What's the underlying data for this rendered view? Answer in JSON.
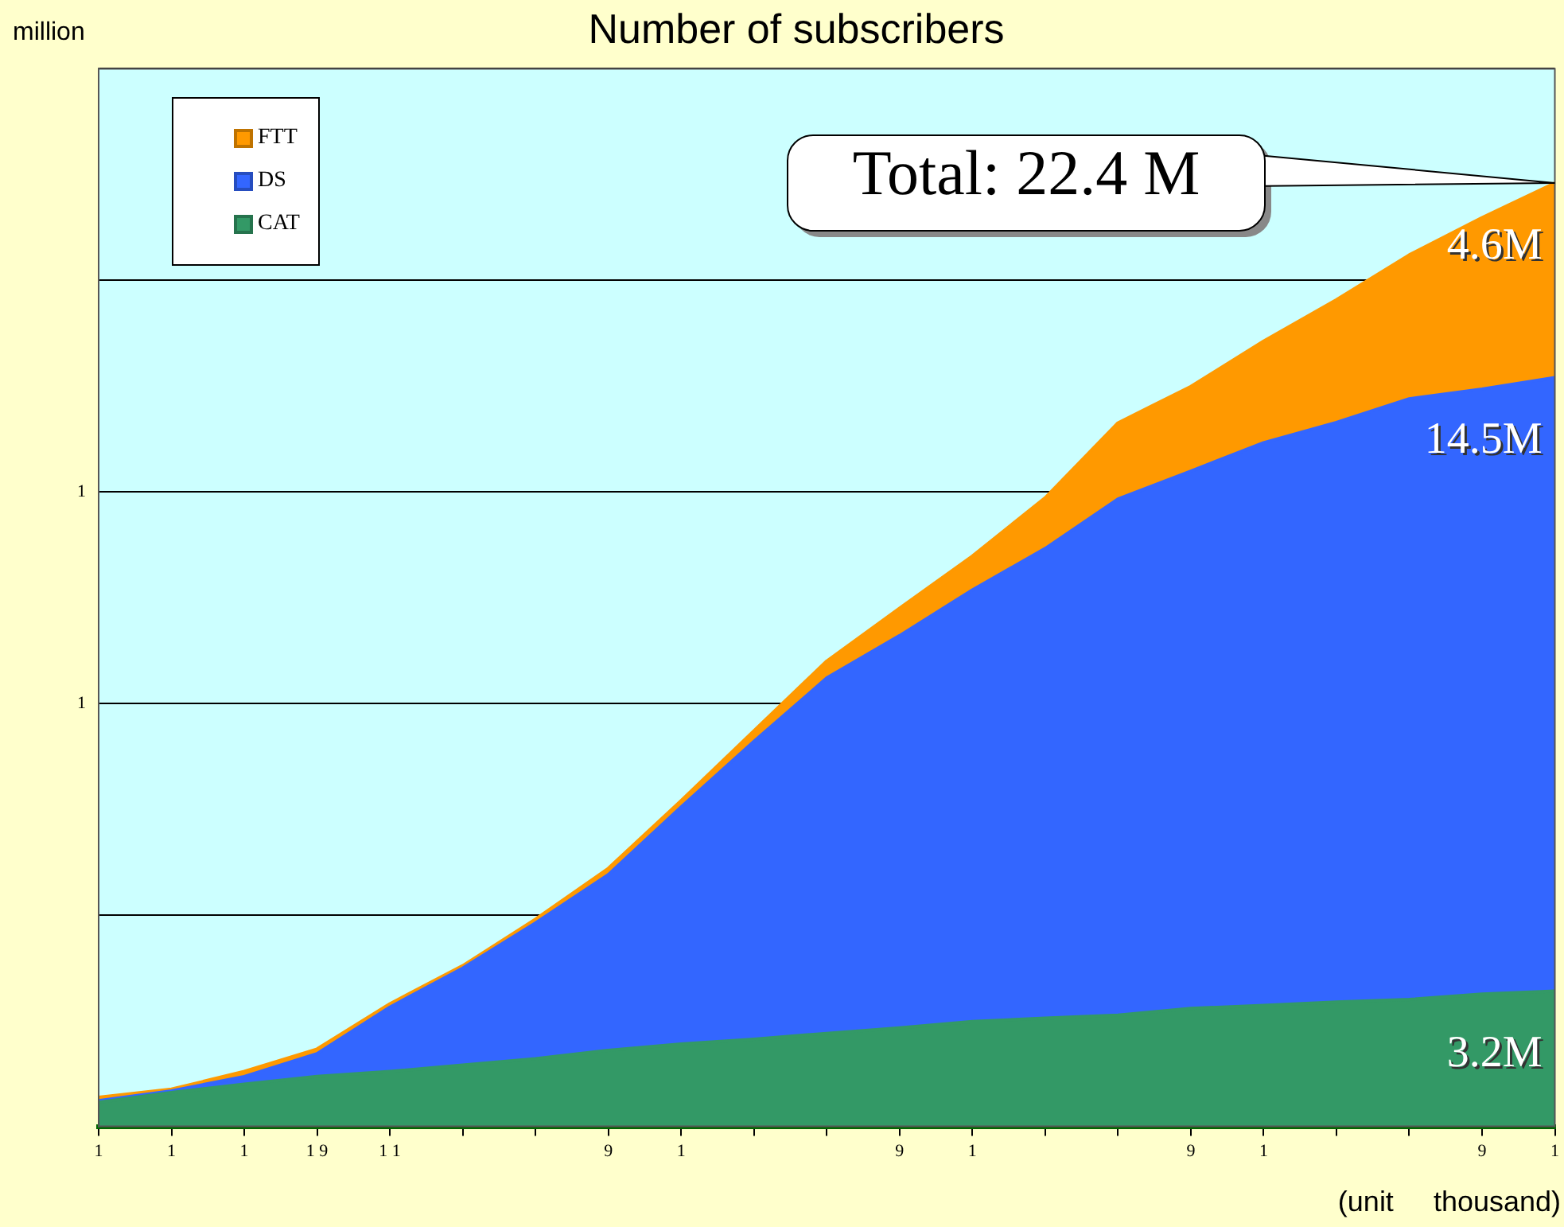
{
  "chart_data": {
    "type": "area",
    "title": "Number of subscribers",
    "ylabel": "million",
    "stacked": true,
    "categories": [
      "1",
      "1",
      "1",
      "1 9",
      "1 1",
      null,
      null,
      "9",
      "1",
      null,
      null,
      "9",
      "1",
      null,
      null,
      "9",
      "1",
      null,
      null,
      "9",
      "1"
    ],
    "series": [
      {
        "name": "CAT",
        "color": "#339966",
        "values": [
          0.57,
          0.8,
          1.0,
          1.18,
          1.3,
          1.45,
          1.6,
          1.8,
          1.95,
          2.06,
          2.2,
          2.33,
          2.48,
          2.56,
          2.63,
          2.79,
          2.86,
          2.94,
          3.0,
          3.13,
          3.2
        ],
        "value_labels": [
          null,
          null,
          null,
          null,
          null,
          null,
          null,
          null,
          null,
          null,
          null,
          null,
          null,
          null,
          null,
          null,
          null,
          null,
          null,
          null,
          "3.2M"
        ]
      },
      {
        "name": "DS",
        "color": "#3366ff",
        "values": [
          0.04,
          0.04,
          0.18,
          0.54,
          1.52,
          2.29,
          3.21,
          4.15,
          5.6,
          7.04,
          8.4,
          9.27,
          10.2,
          11.1,
          12.2,
          12.7,
          13.3,
          13.7,
          14.2,
          14.3,
          14.5
        ],
        "value_labels": [
          null,
          null,
          null,
          null,
          null,
          null,
          null,
          null,
          null,
          null,
          null,
          null,
          null,
          null,
          null,
          null,
          null,
          null,
          null,
          null,
          "14.5M"
        ]
      },
      {
        "name": "FTT",
        "color": "#ff9900",
        "values": [
          0.08,
          0.04,
          0.12,
          0.11,
          0.08,
          0.06,
          0.09,
          0.15,
          0.15,
          0.25,
          0.4,
          0.65,
          0.8,
          1.2,
          1.8,
          2.0,
          2.4,
          2.9,
          3.4,
          4.05,
          4.6
        ],
        "value_labels": [
          null,
          null,
          null,
          null,
          null,
          null,
          null,
          null,
          null,
          null,
          null,
          null,
          null,
          null,
          null,
          null,
          null,
          null,
          null,
          null,
          "4.6M"
        ]
      }
    ],
    "ylim": [
      0,
      25
    ],
    "yticks": [
      {
        "value": 0,
        "label": null
      },
      {
        "value": 5,
        "label": null
      },
      {
        "value": 10,
        "label": null
      },
      {
        "value": 15,
        "label": null
      },
      {
        "value": 20,
        "label": null
      },
      {
        "value": 25,
        "label": null
      }
    ],
    "grid": "y",
    "legend": "top left",
    "annotations": [
      "Total: 22.4 M",
      "(unit thousand)",
      "1",
      "1"
    ]
  }
}
